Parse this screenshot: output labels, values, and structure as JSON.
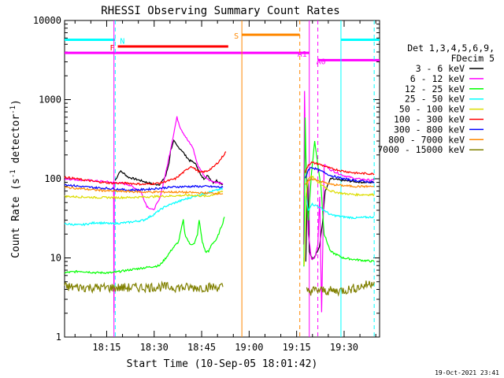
{
  "chart_data": {
    "type": "line",
    "title": "RHESSI Observing Summary Count Rates",
    "xlabel": "Start Time (10-Sep-05 18:01:42)",
    "ylabel_main": "Count Rate (s",
    "ylabel_sup1": "-1",
    "ylabel_mid": " detector",
    "ylabel_sup2": "-1",
    "ylabel_end": ")",
    "yscale": "log",
    "ylim": [
      1,
      10000
    ],
    "xlim_minutes": [
      0,
      99.5
    ],
    "x_ticks": [
      {
        "label": "18:15",
        "minute": 13.3
      },
      {
        "label": "18:30",
        "minute": 28.3
      },
      {
        "label": "18:45",
        "minute": 43.3
      },
      {
        "label": "19:00",
        "minute": 58.3
      },
      {
        "label": "19:15",
        "minute": 73.3
      },
      {
        "label": "19:30",
        "minute": 88.3
      }
    ],
    "y_ticks": [
      {
        "label": "1",
        "value": 1
      },
      {
        "label": "10",
        "value": 10
      },
      {
        "label": "100",
        "value": 100
      },
      {
        "label": "1000",
        "value": 1000
      },
      {
        "label": "10000",
        "value": 10000
      }
    ],
    "legend": {
      "title_line1": "Det 1,3,4,5,6,9,",
      "title_line2": "FDecim 5",
      "entries": [
        {
          "label": "3 - 6 keV",
          "color": "#000000"
        },
        {
          "label": "6 - 12 keV",
          "color": "#ff00ff"
        },
        {
          "label": "12 - 25 keV",
          "color": "#00ff00"
        },
        {
          "label": "25 - 50 keV",
          "color": "#00ffff"
        },
        {
          "label": "50 - 100 keV",
          "color": "#dddd00"
        },
        {
          "label": "100 - 300 keV",
          "color": "#ff0000"
        },
        {
          "label": "300 - 800 keV",
          "color": "#0000ff"
        },
        {
          "label": "800 - 7000 keV",
          "color": "#ff8800"
        },
        {
          "label": "7000 - 15000 keV",
          "color": "#808000"
        }
      ]
    },
    "flags": [
      {
        "label": "N",
        "color": "#00ffff",
        "segments": [
          [
            0,
            16.0
          ],
          [
            87.3,
            99.5
          ]
        ],
        "value": 5700
      },
      {
        "label": "F",
        "color": "#ff0000",
        "segments": [
          [
            16.8,
            51.7
          ]
        ],
        "value": 4700
      },
      {
        "label": "S",
        "color": "#ff8800",
        "segments": [
          [
            56.0,
            74.3
          ]
        ],
        "value": 6600
      },
      {
        "label": "A1",
        "color": "#ff00ff",
        "segments": [
          [
            0,
            77.3
          ]
        ],
        "value": 3900
      },
      {
        "label": "A0",
        "color": "#ff00ff",
        "segments": [
          [
            80.0,
            99.5
          ]
        ],
        "value": 3150
      }
    ],
    "series": [
      {
        "name": "3 - 6 keV",
        "color": "#000000",
        "segA": [
          [
            16.0,
            95
          ],
          [
            17.5,
            125
          ],
          [
            19,
            115
          ],
          [
            20,
            105
          ],
          [
            22,
            100
          ],
          [
            24,
            95
          ],
          [
            26,
            90
          ],
          [
            28,
            85
          ],
          [
            30,
            85
          ],
          [
            31,
            95
          ],
          [
            32,
            110
          ],
          [
            33,
            160
          ],
          [
            33.5,
            230
          ],
          [
            34.5,
            300
          ],
          [
            35.5,
            260
          ],
          [
            37,
            230
          ],
          [
            38,
            200
          ],
          [
            39.5,
            170
          ],
          [
            41,
            160
          ],
          [
            42,
            140
          ],
          [
            43,
            110
          ],
          [
            44,
            100
          ],
          [
            45,
            110
          ],
          [
            46,
            100
          ],
          [
            47,
            90
          ],
          [
            48,
            95
          ],
          [
            49,
            90
          ],
          [
            50,
            85
          ]
        ],
        "segB": [
          [
            76.2,
            9
          ],
          [
            76.8,
            100
          ],
          [
            77.3,
            12
          ],
          [
            78.3,
            9.5
          ],
          [
            79.3,
            11
          ],
          [
            80.5,
            14
          ],
          [
            81.5,
            28
          ],
          [
            82.3,
            70
          ],
          [
            83,
            80
          ],
          [
            84,
            100
          ],
          [
            88,
            95
          ],
          [
            92,
            92
          ],
          [
            95,
            90
          ],
          [
            97.8,
            90
          ]
        ]
      },
      {
        "name": "6 - 12 keV",
        "color": "#ff00ff",
        "segA": [
          [
            0,
            100
          ],
          [
            8,
            95
          ],
          [
            15.5,
            90
          ],
          [
            15.6,
            2
          ],
          [
            15.7,
            90
          ],
          [
            20,
            85
          ],
          [
            24,
            70
          ],
          [
            26,
            45
          ],
          [
            28,
            40
          ],
          [
            30,
            55
          ],
          [
            32,
            120
          ],
          [
            34,
            300
          ],
          [
            35.5,
            600
          ],
          [
            36.5,
            450
          ],
          [
            37.5,
            380
          ],
          [
            39,
            300
          ],
          [
            40.5,
            250
          ],
          [
            42,
            150
          ],
          [
            43,
            130
          ],
          [
            44,
            110
          ],
          [
            46,
            95
          ],
          [
            48,
            90
          ],
          [
            50,
            85
          ]
        ],
        "segB": [
          [
            75.5,
            15
          ],
          [
            75.8,
            1300
          ],
          [
            76.1,
            200
          ],
          [
            76.5,
            110
          ],
          [
            77,
            20
          ],
          [
            78,
            9.5
          ],
          [
            79,
            10
          ],
          [
            80,
            15
          ],
          [
            80.6,
            60
          ],
          [
            81.2,
            2
          ],
          [
            82,
            150
          ],
          [
            84,
            130
          ],
          [
            88,
            110
          ],
          [
            92,
            100
          ],
          [
            97.8,
            95
          ]
        ]
      },
      {
        "name": "12 - 25 keV",
        "color": "#00ff00",
        "segA": [
          [
            0,
            6.5
          ],
          [
            5,
            6.8
          ],
          [
            10,
            6.5
          ],
          [
            15,
            6.5
          ],
          [
            20,
            7
          ],
          [
            25,
            7.5
          ],
          [
            30,
            8
          ],
          [
            32,
            10
          ],
          [
            34,
            13
          ],
          [
            36,
            16
          ],
          [
            37.5,
            30
          ],
          [
            38,
            20
          ],
          [
            39.5,
            15
          ],
          [
            41,
            15
          ],
          [
            42,
            20
          ],
          [
            42.5,
            30
          ],
          [
            43.5,
            16
          ],
          [
            44.5,
            12
          ],
          [
            45.5,
            12
          ],
          [
            46.5,
            15
          ],
          [
            48,
            17
          ],
          [
            50,
            28
          ],
          [
            50.5,
            33
          ]
        ],
        "segB": [
          [
            75.6,
            8
          ],
          [
            76,
            600
          ],
          [
            76.5,
            60
          ],
          [
            77,
            30
          ],
          [
            78,
            120
          ],
          [
            79,
            300
          ],
          [
            80,
            150
          ],
          [
            81,
            80
          ],
          [
            82,
            20
          ],
          [
            84,
            12
          ],
          [
            88,
            10
          ],
          [
            92,
            9.5
          ],
          [
            97.8,
            9
          ]
        ]
      },
      {
        "name": "25 - 50 keV",
        "color": "#00ffff",
        "segA": [
          [
            0,
            27
          ],
          [
            5,
            26
          ],
          [
            10,
            28
          ],
          [
            15,
            27
          ],
          [
            20,
            28
          ],
          [
            25,
            30
          ],
          [
            28,
            35
          ],
          [
            30,
            40
          ],
          [
            32,
            45
          ],
          [
            35,
            50
          ],
          [
            38,
            55
          ],
          [
            41,
            60
          ],
          [
            44,
            65
          ],
          [
            47,
            70
          ],
          [
            50,
            75
          ]
        ],
        "segB": [
          [
            75.7,
            10
          ],
          [
            76.2,
            60
          ],
          [
            77,
            40
          ],
          [
            78,
            48
          ],
          [
            80,
            45
          ],
          [
            82,
            40
          ],
          [
            84,
            35
          ],
          [
            88,
            33
          ],
          [
            92,
            32
          ],
          [
            97.8,
            33
          ]
        ]
      },
      {
        "name": "50 - 100 keV",
        "color": "#dddd00",
        "segA": [
          [
            0,
            60
          ],
          [
            10,
            58
          ],
          [
            20,
            58
          ],
          [
            30,
            60
          ],
          [
            40,
            62
          ],
          [
            45,
            60
          ],
          [
            48,
            65
          ],
          [
            50,
            70
          ]
        ],
        "segB": [
          [
            75.7,
            8
          ],
          [
            76.3,
            65
          ],
          [
            77,
            100
          ],
          [
            78,
            110
          ],
          [
            80,
            90
          ],
          [
            82,
            80
          ],
          [
            84,
            70
          ],
          [
            88,
            65
          ],
          [
            92,
            63
          ],
          [
            97.8,
            63
          ]
        ]
      },
      {
        "name": "100 - 300 keV",
        "color": "#ff0000",
        "segA": [
          [
            0,
            105
          ],
          [
            5,
            98
          ],
          [
            10,
            92
          ],
          [
            15,
            88
          ],
          [
            20,
            88
          ],
          [
            25,
            85
          ],
          [
            30,
            88
          ],
          [
            35,
            100
          ],
          [
            38,
            125
          ],
          [
            40,
            145
          ],
          [
            41.5,
            130
          ],
          [
            43,
            120
          ],
          [
            45,
            125
          ],
          [
            47,
            140
          ],
          [
            49,
            170
          ],
          [
            51,
            220
          ]
        ],
        "segB": [
          [
            76,
            120
          ],
          [
            77,
            150
          ],
          [
            78,
            160
          ],
          [
            80,
            155
          ],
          [
            82,
            145
          ],
          [
            84,
            135
          ],
          [
            88,
            125
          ],
          [
            92,
            118
          ],
          [
            97.8,
            115
          ]
        ]
      },
      {
        "name": "300 - 800 keV",
        "color": "#0000ff",
        "segA": [
          [
            0,
            85
          ],
          [
            5,
            80
          ],
          [
            10,
            77
          ],
          [
            15,
            75
          ],
          [
            20,
            72
          ],
          [
            25,
            73
          ],
          [
            30,
            76
          ],
          [
            35,
            79
          ],
          [
            40,
            80
          ],
          [
            45,
            80
          ],
          [
            50,
            78
          ]
        ],
        "segB": [
          [
            76,
            100
          ],
          [
            77,
            130
          ],
          [
            78,
            140
          ],
          [
            80,
            130
          ],
          [
            82,
            120
          ],
          [
            84,
            110
          ],
          [
            88,
            100
          ],
          [
            92,
            95
          ],
          [
            97.8,
            90
          ]
        ]
      },
      {
        "name": "800 - 7000 keV",
        "color": "#ff8800",
        "segA": [
          [
            0,
            78
          ],
          [
            5,
            75
          ],
          [
            10,
            72
          ],
          [
            15,
            70
          ],
          [
            20,
            69
          ],
          [
            25,
            68
          ],
          [
            30,
            68
          ],
          [
            35,
            68
          ],
          [
            40,
            67
          ],
          [
            45,
            66
          ],
          [
            50,
            65
          ]
        ],
        "segB": [
          [
            76,
            85
          ],
          [
            78,
            100
          ],
          [
            80,
            95
          ],
          [
            82,
            90
          ],
          [
            84,
            85
          ],
          [
            88,
            82
          ],
          [
            92,
            80
          ],
          [
            97.8,
            80
          ]
        ]
      },
      {
        "name": "7000 - 15000 keV",
        "color": "#808000",
        "segA": [
          [
            0,
            4.3
          ],
          [
            10,
            4.2
          ],
          [
            20,
            4.2
          ],
          [
            30,
            4.3
          ],
          [
            40,
            4.2
          ],
          [
            50,
            4.3
          ]
        ],
        "segB": [
          [
            76.5,
            3.8
          ],
          [
            80,
            3.9
          ],
          [
            85,
            3.8
          ],
          [
            90,
            4.0
          ],
          [
            95,
            4.5
          ],
          [
            97.8,
            5.0
          ]
        ]
      }
    ],
    "vlines": [
      {
        "minute": 16.0,
        "color": "#00ffff",
        "style": "dashed"
      },
      {
        "minute": 15.6,
        "color": "#ff00ff",
        "style": "solid"
      },
      {
        "minute": 56.0,
        "color": "#ff8800",
        "style": "solid"
      },
      {
        "minute": 74.3,
        "color": "#ff8800",
        "style": "dashed"
      },
      {
        "minute": 77.3,
        "color": "#ff00ff",
        "style": "solid"
      },
      {
        "minute": 80.0,
        "color": "#ff00ff",
        "style": "dashed"
      },
      {
        "minute": 87.3,
        "color": "#00ffff",
        "style": "solid"
      },
      {
        "minute": 97.8,
        "color": "#00ffff",
        "style": "dashed"
      }
    ],
    "timestamp": "19-Oct-2021 23:41"
  }
}
